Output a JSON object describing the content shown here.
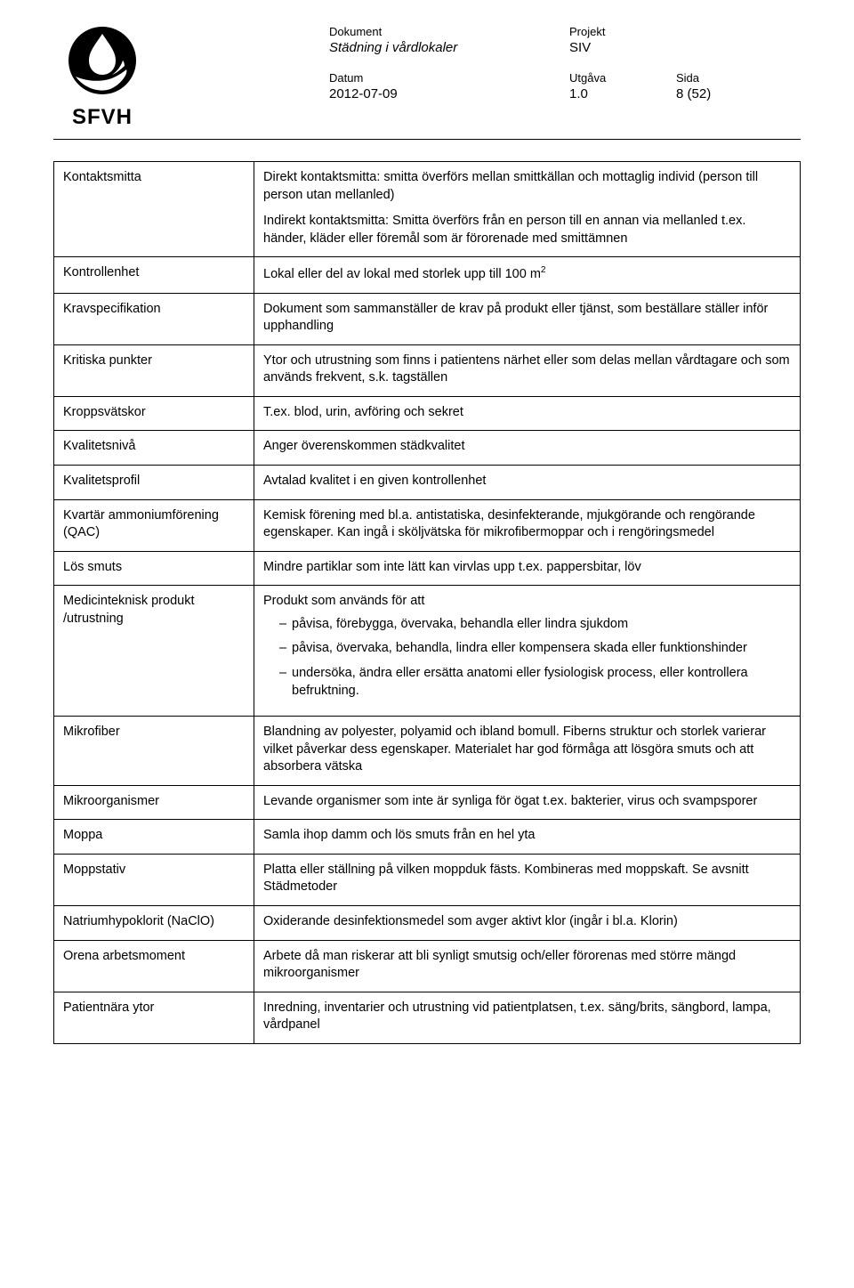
{
  "header": {
    "labels": {
      "dokument": "Dokument",
      "projekt": "Projekt",
      "datum": "Datum",
      "utgava": "Utgåva",
      "sida": "Sida"
    },
    "dokument": "Städning i vårdlokaler",
    "projekt": "SIV",
    "datum": "2012-07-09",
    "utgava": "1.0",
    "sida": "8 (52)",
    "logo_text": "SFVH"
  },
  "rows": [
    {
      "term": "Kontaktsmitta",
      "paras": [
        "Direkt kontaktsmitta: smitta överförs mellan smittkällan och mottaglig individ (person till person utan mellanled)",
        "Indirekt kontaktsmitta: Smitta överförs från en person till en annan via mellanled t.ex. händer, kläder eller föremål som är förorenade med smittämnen"
      ]
    },
    {
      "term": "Kontrollenhet",
      "html": "Lokal eller del av lokal med storlek upp till 100 m<sup>2</sup>"
    },
    {
      "term": "Kravspecifikation",
      "paras": [
        "Dokument som sammanställer de krav på produkt eller tjänst, som beställare ställer inför upphandling"
      ]
    },
    {
      "term": "Kritiska punkter",
      "paras": [
        "Ytor och utrustning som finns i patientens närhet eller som delas mellan vårdtagare och som används frekvent, s.k. tagställen"
      ]
    },
    {
      "term": "Kroppsvätskor",
      "paras": [
        "T.ex. blod, urin, avföring och sekret"
      ]
    },
    {
      "term": "Kvalitetsnivå",
      "paras": [
        "Anger överenskommen städkvalitet"
      ]
    },
    {
      "term": "Kvalitetsprofil",
      "paras": [
        "Avtalad kvalitet i en given kontrollenhet"
      ]
    },
    {
      "term": "Kvartär ammoniumförening (QAC)",
      "paras": [
        "Kemisk förening med bl.a. antistatiska, desinfekterande, mjukgörande och rengörande egenskaper. Kan ingå i sköljvätska för mikrofibermoppar och i rengöringsmedel"
      ]
    },
    {
      "term": "Lös smuts",
      "paras": [
        "Mindre partiklar som inte lätt kan virvlas upp t.ex. pappersbitar, löv"
      ]
    },
    {
      "term": "Medicinteknisk produkt /utrustning",
      "lead": "Produkt som används för att",
      "bullets": [
        "påvisa, förebygga, övervaka, behandla eller lindra sjukdom",
        "påvisa, övervaka, behandla, lindra eller kompensera skada eller funktionshinder",
        "undersöka, ändra eller ersätta anatomi eller fysiologisk process, eller kontrollera befruktning."
      ]
    },
    {
      "term": "Mikrofiber",
      "paras": [
        "Blandning av polyester, polyamid och ibland bomull. Fiberns struktur och storlek varierar vilket påverkar dess egenskaper. Materialet har god förmåga att lösgöra smuts och att absorbera vätska"
      ]
    },
    {
      "term": "Mikroorganismer",
      "paras": [
        "Levande organismer som inte är synliga för ögat t.ex. bakterier, virus och svampsporer"
      ]
    },
    {
      "term": "Moppa",
      "paras": [
        "Samla ihop damm och lös smuts från en hel yta"
      ]
    },
    {
      "term": "Moppstativ",
      "paras": [
        "Platta eller ställning på vilken moppduk fästs. Kombineras med moppskaft. Se avsnitt Städmetoder"
      ]
    },
    {
      "term": "Natriumhypoklorit (NaClO)",
      "paras": [
        "Oxiderande desinfektionsmedel som avger aktivt klor (ingår i bl.a. Klorin)"
      ]
    },
    {
      "term": "Orena arbetsmoment",
      "paras": [
        "Arbete då man riskerar att bli synligt smutsig och/eller förorenas med större mängd mikroorganismer"
      ]
    },
    {
      "term": "Patientnära ytor",
      "paras": [
        "Inredning, inventarier och utrustning vid patientplatsen, t.ex. säng/brits, sängbord, lampa, vårdpanel"
      ]
    }
  ]
}
